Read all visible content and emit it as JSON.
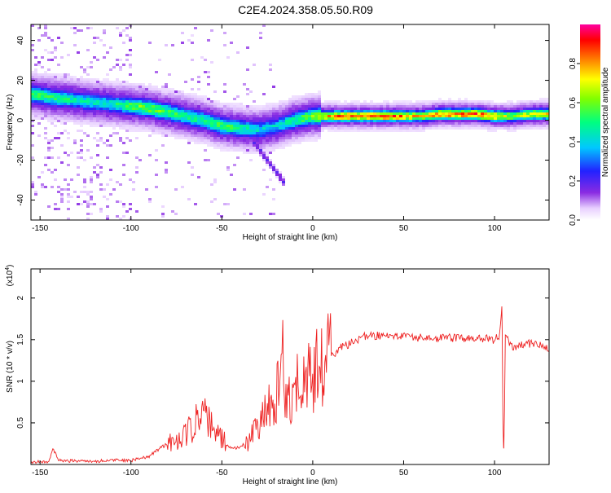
{
  "title": "C2E4.2024.358.05.50.R09",
  "spectrogram": {
    "xlabel": "Height of straight line (km)",
    "ylabel": "Frequency (Hz)",
    "xlim": [
      -155,
      130
    ],
    "ylim": [
      -50,
      48
    ],
    "xticks": [
      -150,
      -100,
      -50,
      0,
      50,
      100
    ],
    "yticks": [
      -40,
      -20,
      0,
      20,
      40
    ],
    "colorbar": {
      "label": "Normalized spectral amplitude",
      "ticks": [
        0.0,
        0.2,
        0.4,
        0.6,
        0.8
      ],
      "range": [
        0,
        1
      ]
    }
  },
  "chart_data": [
    {
      "type": "heatmap",
      "title": "C2E4.2024.358.05.50.R09",
      "xlabel": "Height of straight line (km)",
      "ylabel": "Frequency (Hz)",
      "xlim": [
        -155,
        130
      ],
      "ylim": [
        -50,
        48
      ],
      "colorbar_label": "Normalized spectral amplitude",
      "ridge": {
        "x": [
          -155,
          -140,
          -130,
          -120,
          -110,
          -100,
          -90,
          -80,
          -70,
          -60,
          -50,
          -40,
          -30,
          -20,
          -10,
          0,
          10,
          20,
          30,
          40,
          50,
          60,
          70,
          80,
          90,
          100,
          110,
          120,
          130
        ],
        "freq": [
          13,
          11,
          10,
          9,
          8,
          7,
          6,
          4,
          2,
          0,
          -3,
          -4,
          -5,
          -3,
          0,
          2,
          2,
          2,
          2,
          2,
          2,
          2,
          3,
          3,
          3,
          2,
          2,
          3,
          3
        ],
        "amplitude": [
          0.55,
          0.5,
          0.45,
          0.45,
          0.45,
          0.55,
          0.6,
          0.55,
          0.5,
          0.5,
          0.55,
          0.5,
          0.4,
          0.4,
          0.5,
          0.6,
          0.8,
          0.85,
          0.85,
          0.85,
          0.8,
          0.7,
          0.8,
          0.85,
          0.85,
          0.8,
          0.6,
          0.7,
          0.7
        ]
      },
      "branch": {
        "x": [
          -35,
          -30,
          -25,
          -20,
          -15
        ],
        "freq": [
          -8,
          -14,
          -20,
          -26,
          -32
        ]
      }
    },
    {
      "type": "line",
      "xlabel": "Height of straight line (km)",
      "ylabel": "SNR (10 * v/v)",
      "y_multiplier": "(x10",
      "y_multiplier_exp": "4",
      "xlim": [
        -155,
        130
      ],
      "ylim": [
        0,
        2.35
      ],
      "xticks": [
        -150,
        -100,
        -50,
        0,
        50,
        100
      ],
      "yticks": [
        0.5,
        1.0,
        1.5,
        2.0
      ],
      "series": [
        {
          "color": "#ee2222",
          "x": [
            -155,
            -145,
            -143,
            -140,
            -130,
            -120,
            -110,
            -100,
            -95,
            -90,
            -85,
            -80,
            -75,
            -70,
            -65,
            -60,
            -55,
            -50,
            -45,
            -40,
            -35,
            -30,
            -25,
            -20,
            -17,
            -15,
            -12,
            -10,
            -5,
            0,
            5,
            10,
            15,
            20,
            25,
            30,
            35,
            40,
            50,
            60,
            70,
            80,
            90,
            100,
            103,
            104,
            105,
            106,
            108,
            110,
            115,
            120,
            125,
            130
          ],
          "y": [
            0.03,
            0.04,
            0.2,
            0.05,
            0.04,
            0.04,
            0.05,
            0.05,
            0.07,
            0.1,
            0.18,
            0.25,
            0.3,
            0.35,
            0.5,
            0.6,
            0.45,
            0.3,
            0.2,
            0.2,
            0.3,
            0.5,
            0.75,
            0.8,
            1.4,
            0.7,
            0.8,
            0.9,
            1.0,
            1.1,
            1.2,
            1.3,
            1.4,
            1.45,
            1.5,
            1.55,
            1.55,
            1.55,
            1.55,
            1.52,
            1.52,
            1.52,
            1.52,
            1.5,
            1.55,
            1.9,
            0.2,
            1.6,
            1.45,
            1.4,
            1.45,
            1.45,
            1.45,
            1.4
          ]
        }
      ]
    }
  ]
}
